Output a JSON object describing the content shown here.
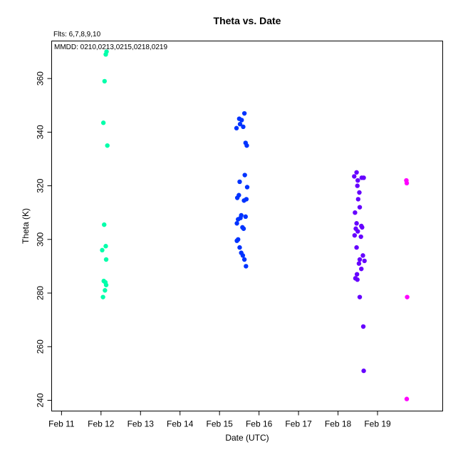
{
  "chart_data": {
    "type": "scatter",
    "title": "Theta  vs. Date",
    "xlabel": "Date (UTC)",
    "ylabel": "Theta (K)",
    "annotations": [
      "Flts: 6,7,8,9,10",
      "MMDD: 0210,0213,0215,0218,0219"
    ],
    "x_unit": "days of February (UTC)",
    "x_tick_values": [
      11,
      12,
      13,
      14,
      15,
      16,
      17,
      18,
      19
    ],
    "x_tick_labels": [
      "Feb 11",
      "Feb 12",
      "Feb 13",
      "Feb 14",
      "Feb 15",
      "Feb 16",
      "Feb 17",
      "Feb 18",
      "Feb 19"
    ],
    "y_tick_values": [
      240,
      260,
      280,
      300,
      320,
      340,
      360
    ],
    "xlim": [
      10.75,
      20.65
    ],
    "ylim": [
      236,
      374
    ],
    "grid": false,
    "legend": "none",
    "series": [
      {
        "color": "#00ffaa",
        "points": [
          [
            12.14,
            370.0
          ],
          [
            12.12,
            369.0
          ],
          [
            12.09,
            359.0
          ],
          [
            12.06,
            343.5
          ],
          [
            12.16,
            335.0
          ],
          [
            12.08,
            305.5
          ],
          [
            12.12,
            297.5
          ],
          [
            12.03,
            296.0
          ],
          [
            12.13,
            292.5
          ],
          [
            12.07,
            284.5
          ],
          [
            12.11,
            284.0
          ],
          [
            12.13,
            283.0
          ],
          [
            12.1,
            281.0
          ],
          [
            12.05,
            278.5
          ]
        ]
      },
      {
        "color": "#0033ff",
        "points": [
          [
            15.63,
            347.0
          ],
          [
            15.5,
            345.0
          ],
          [
            15.56,
            344.5
          ],
          [
            15.52,
            343.0
          ],
          [
            15.6,
            342.0
          ],
          [
            15.43,
            341.5
          ],
          [
            15.66,
            336.0
          ],
          [
            15.69,
            335.0
          ],
          [
            15.64,
            324.0
          ],
          [
            15.51,
            321.5
          ],
          [
            15.7,
            319.5
          ],
          [
            15.49,
            316.5
          ],
          [
            15.45,
            315.5
          ],
          [
            15.68,
            315.0
          ],
          [
            15.62,
            314.5
          ],
          [
            15.55,
            309.0
          ],
          [
            15.66,
            308.5
          ],
          [
            15.53,
            308.0
          ],
          [
            15.47,
            307.5
          ],
          [
            15.44,
            306.0
          ],
          [
            15.58,
            304.5
          ],
          [
            15.61,
            304.0
          ],
          [
            15.47,
            300.0
          ],
          [
            15.44,
            299.5
          ],
          [
            15.51,
            297.0
          ],
          [
            15.55,
            295.0
          ],
          [
            15.59,
            294.0
          ],
          [
            15.63,
            292.5
          ],
          [
            15.67,
            290.0
          ]
        ]
      },
      {
        "color": "#6600ff",
        "points": [
          [
            18.47,
            325.0
          ],
          [
            18.41,
            323.5
          ],
          [
            18.6,
            323.0
          ],
          [
            18.65,
            323.0
          ],
          [
            18.5,
            322.0
          ],
          [
            18.49,
            320.0
          ],
          [
            18.54,
            317.5
          ],
          [
            18.51,
            315.0
          ],
          [
            18.55,
            312.0
          ],
          [
            18.43,
            310.0
          ],
          [
            18.47,
            306.0
          ],
          [
            18.59,
            305.0
          ],
          [
            18.61,
            304.5
          ],
          [
            18.45,
            304.0
          ],
          [
            18.5,
            303.0
          ],
          [
            18.42,
            301.5
          ],
          [
            18.58,
            301.0
          ],
          [
            18.47,
            297.0
          ],
          [
            18.63,
            294.0
          ],
          [
            18.55,
            292.5
          ],
          [
            18.67,
            292.0
          ],
          [
            18.53,
            291.0
          ],
          [
            18.59,
            289.0
          ],
          [
            18.48,
            287.0
          ],
          [
            18.44,
            285.5
          ],
          [
            18.49,
            285.0
          ],
          [
            18.55,
            278.5
          ],
          [
            18.64,
            267.5
          ],
          [
            18.65,
            251.0
          ]
        ]
      },
      {
        "color": "#ff00ff",
        "points": [
          [
            19.73,
            322.0
          ],
          [
            19.74,
            321.0
          ],
          [
            19.75,
            278.5
          ],
          [
            19.74,
            240.5
          ]
        ]
      }
    ]
  }
}
